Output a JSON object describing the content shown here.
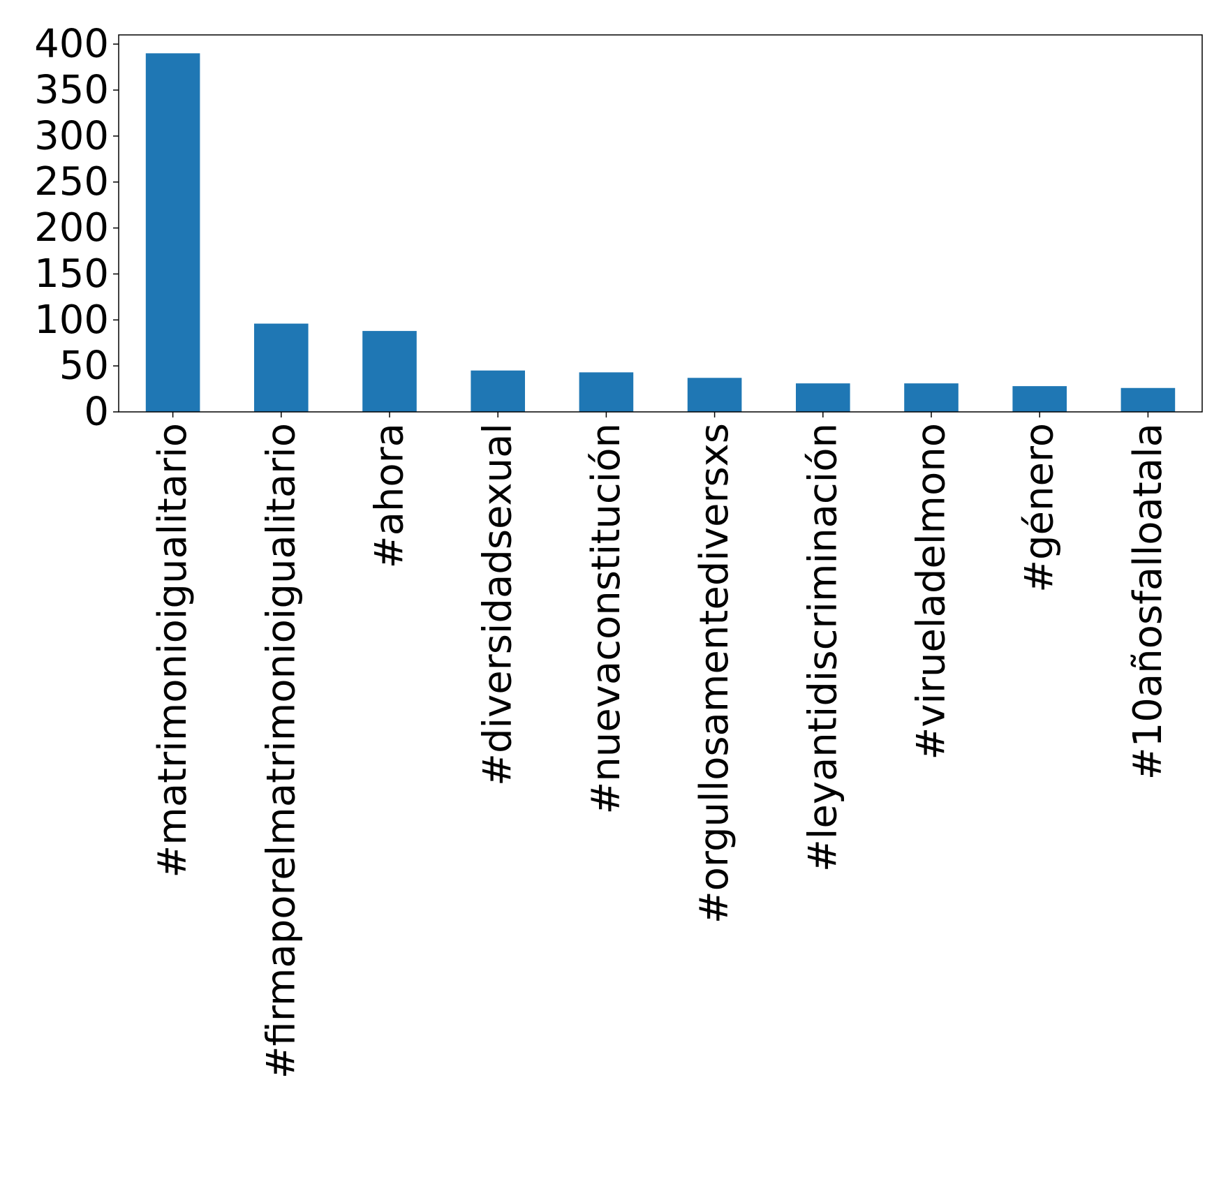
{
  "chart_data": {
    "type": "bar",
    "title": "",
    "xlabel": "",
    "ylabel": "",
    "categories": [
      "#matrimonioigualitario",
      "#firmaporelmatrimonioigualitario",
      "#ahora",
      "#diversidadsexual",
      "#nuevaconstitución",
      "#orgullosamentediversxs",
      "#leyantidiscriminación",
      "#virueladelmono",
      "#género",
      "#10añosfalloatala"
    ],
    "values": [
      390,
      96,
      88,
      45,
      43,
      37,
      31,
      31,
      28,
      26
    ],
    "ylim": [
      0,
      410
    ],
    "yticks": [
      0,
      50,
      100,
      150,
      200,
      250,
      300,
      350,
      400
    ],
    "grid": false,
    "legend": "none",
    "bar_color": "#1f77b4"
  }
}
